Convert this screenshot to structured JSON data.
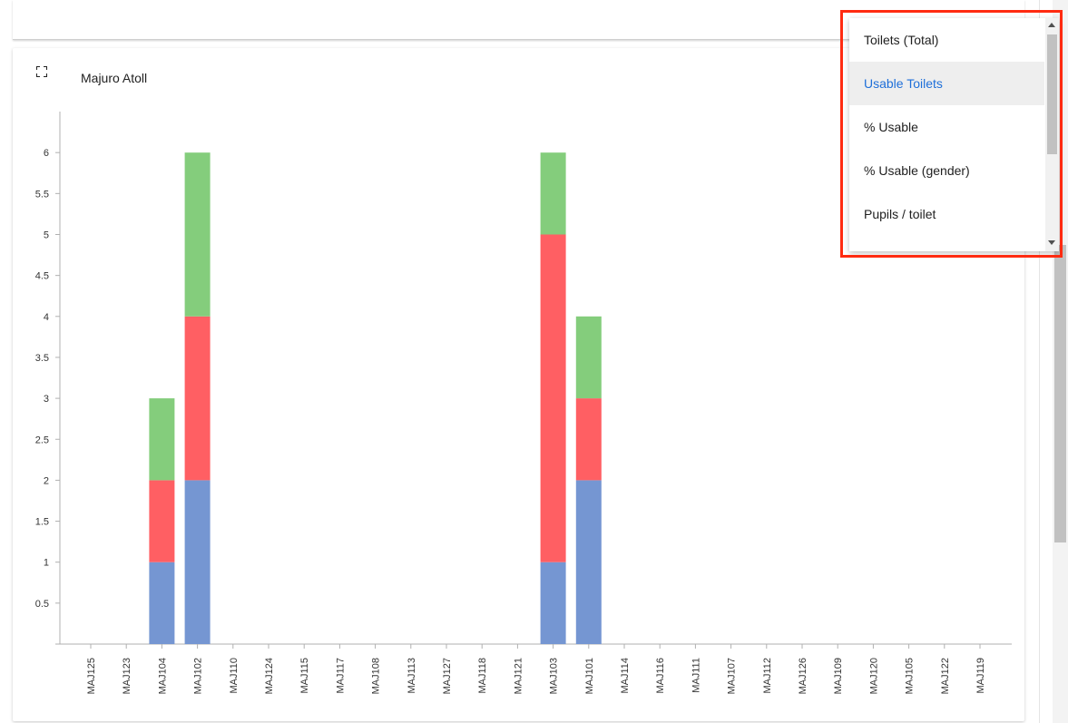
{
  "card": {
    "title": "Majuro Atoll"
  },
  "dropdown": {
    "items": [
      {
        "label": "Toilets (Total)",
        "selected": false
      },
      {
        "label": "Usable Toilets",
        "selected": true
      },
      {
        "label": "% Usable",
        "selected": false
      },
      {
        "label": "% Usable (gender)",
        "selected": false
      },
      {
        "label": "Pupils / toilet",
        "selected": false
      }
    ]
  },
  "colors": {
    "blue": "#7596d2",
    "red": "#ff5f63",
    "green": "#84cd7c",
    "accent": "#1e6fd9",
    "highlight": "#ff2b11"
  },
  "chart_data": {
    "type": "bar",
    "stacked": true,
    "categories": [
      "MAJ125",
      "MAJ123",
      "MAJ104",
      "MAJ102",
      "MAJ110",
      "MAJ124",
      "MAJ115",
      "MAJ117",
      "MAJ108",
      "MAJ113",
      "MAJ127",
      "MAJ118",
      "MAJ121",
      "MAJ103",
      "MAJ101",
      "MAJ114",
      "MAJ116",
      "MAJ111",
      "MAJ107",
      "MAJ112",
      "MAJ126",
      "MAJ109",
      "MAJ120",
      "MAJ105",
      "MAJ122",
      "MAJ119"
    ],
    "series": [
      {
        "color": "#7596d2",
        "values": [
          0,
          0,
          1,
          2,
          0,
          0,
          0,
          0,
          0,
          0,
          0,
          0,
          0,
          1,
          2,
          0,
          0,
          0,
          0,
          0,
          0,
          0,
          0,
          0,
          0,
          0
        ]
      },
      {
        "color": "#ff5f63",
        "values": [
          0,
          0,
          1,
          2,
          0,
          0,
          0,
          0,
          0,
          0,
          0,
          0,
          0,
          4,
          1,
          0,
          0,
          0,
          0,
          0,
          0,
          0,
          0,
          0,
          0,
          0
        ]
      },
      {
        "color": "#84cd7c",
        "values": [
          0,
          0,
          1,
          2,
          0,
          0,
          0,
          0,
          0,
          0,
          0,
          0,
          0,
          1,
          1,
          0,
          0,
          0,
          0,
          0,
          0,
          0,
          0,
          0,
          0,
          0
        ]
      }
    ],
    "yticks": [
      "0.5",
      "1",
      "1.5",
      "2",
      "2.5",
      "3",
      "3.5",
      "4",
      "4.5",
      "5",
      "5.5",
      "6"
    ],
    "ylim": [
      0,
      6.5
    ],
    "xlabel": "",
    "ylabel": "",
    "grid": false
  }
}
